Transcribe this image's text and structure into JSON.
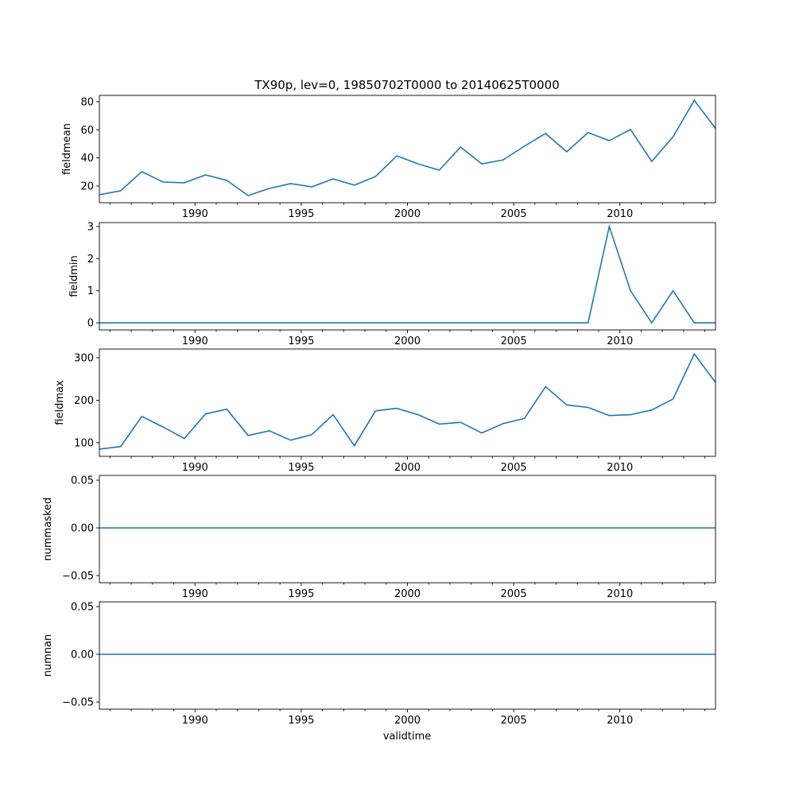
{
  "chart_data": {
    "type": "line",
    "title": "TX90p, lev=0, 19850702T0000 to 20140625T0000",
    "xlabel": "validtime",
    "x": [
      1985.5,
      1986.5,
      1987.5,
      1988.5,
      1989.5,
      1990.5,
      1991.5,
      1992.5,
      1993.5,
      1994.5,
      1995.5,
      1996.5,
      1997.5,
      1998.5,
      1999.5,
      2000.5,
      2001.5,
      2002.5,
      2003.5,
      2004.5,
      2005.5,
      2006.5,
      2007.5,
      2008.5,
      2009.5,
      2010.5,
      2011.5,
      2012.5,
      2013.5,
      2014.5
    ],
    "xlim": [
      1985.5,
      2014.5
    ],
    "xticks": [
      "1990",
      "1995",
      "2000",
      "2005",
      "2010"
    ],
    "line_color": "#1f77b4",
    "panels": [
      {
        "ylabel": "fieldmean",
        "ylim": [
          8.1,
          84.5
        ],
        "yticks": [
          "20",
          "40",
          "60",
          "80"
        ],
        "ytick_values": [
          20,
          40,
          60,
          80
        ],
        "values": [
          13.8,
          16.6,
          30.2,
          22.8,
          22.3,
          27.9,
          24.0,
          13.2,
          18.3,
          21.7,
          19.4,
          25.1,
          20.6,
          26.8,
          41.5,
          35.8,
          31.3,
          47.7,
          35.8,
          38.6,
          48.3,
          57.4,
          44.4,
          58.0,
          52.3,
          60.2,
          37.5,
          55.0,
          81.0,
          61.0
        ]
      },
      {
        "ylabel": "fieldmin",
        "ylim": [
          -0.22,
          3.12
        ],
        "yticks": [
          "0",
          "1",
          "2",
          "3"
        ],
        "ytick_values": [
          0,
          1,
          2,
          3
        ],
        "values": [
          0,
          0,
          0,
          0,
          0,
          0,
          0,
          0,
          0,
          0,
          0,
          0,
          0,
          0,
          0,
          0,
          0,
          0,
          0,
          0,
          0,
          0,
          0,
          0,
          3,
          1,
          0,
          1,
          0,
          0
        ]
      },
      {
        "ylabel": "fieldmax",
        "ylim": [
          68,
          320.6
        ],
        "yticks": [
          "100",
          "200",
          "300"
        ],
        "ytick_values": [
          100,
          200,
          300
        ],
        "values": [
          85,
          91,
          162,
          137,
          110,
          168,
          179,
          117,
          128,
          106,
          119,
          166,
          93,
          175,
          181,
          166,
          144,
          148,
          123,
          145,
          157,
          232,
          189,
          183,
          164,
          166,
          177,
          203,
          309,
          242
        ]
      },
      {
        "ylabel": "nummasked",
        "ylim": [
          -0.0575,
          0.055
        ],
        "yticks": [
          "−0.05",
          "0.00",
          "0.05"
        ],
        "ytick_values": [
          -0.05,
          0,
          0.05
        ],
        "values": [
          0,
          0,
          0,
          0,
          0,
          0,
          0,
          0,
          0,
          0,
          0,
          0,
          0,
          0,
          0,
          0,
          0,
          0,
          0,
          0,
          0,
          0,
          0,
          0,
          0,
          0,
          0,
          0,
          0,
          0
        ]
      },
      {
        "ylabel": "numnan",
        "ylim": [
          -0.0575,
          0.055
        ],
        "yticks": [
          "−0.05",
          "0.00",
          "0.05"
        ],
        "ytick_values": [
          -0.05,
          0,
          0.05
        ],
        "values": [
          0,
          0,
          0,
          0,
          0,
          0,
          0,
          0,
          0,
          0,
          0,
          0,
          0,
          0,
          0,
          0,
          0,
          0,
          0,
          0,
          0,
          0,
          0,
          0,
          0,
          0,
          0,
          0,
          0,
          0
        ]
      }
    ]
  }
}
